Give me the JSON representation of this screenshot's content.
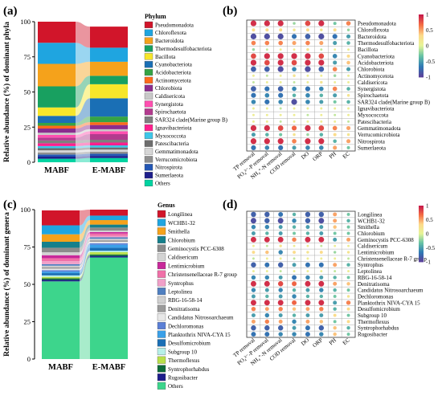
{
  "panels": {
    "a": {
      "label": "(a)"
    },
    "b": {
      "label": "(b)"
    },
    "c": {
      "label": "(c)"
    },
    "d": {
      "label": "(d)"
    }
  },
  "chart_data": [
    {
      "type": "bar",
      "panel": "a",
      "stacked": true,
      "ylabel": "Relative abundance (%) of dominant phyla",
      "ylim": [
        0,
        100
      ],
      "yticks": [
        0,
        25,
        50,
        75,
        100
      ],
      "categories": [
        "MABF",
        "E-MABF"
      ],
      "legend_title": "Phylum",
      "series_bottom_to_top": [
        {
          "name": "Others",
          "color": "#00d3a1",
          "values": [
            2.5,
            3
          ]
        },
        {
          "name": "Sumerlaeota",
          "color": "#1e1e8c",
          "values": [
            1.5,
            1.5
          ]
        },
        {
          "name": "Nitrospirota",
          "color": "#2357b5",
          "values": [
            1.5,
            1.5
          ]
        },
        {
          "name": "Verrucomicrobiota",
          "color": "#8f8f8f",
          "values": [
            1.5,
            1.5
          ]
        },
        {
          "name": "Gemmatimonadota",
          "color": "#d6d6d6",
          "values": [
            1.5,
            1.5
          ]
        },
        {
          "name": "Patescibacteria",
          "color": "#6d6d6d",
          "values": [
            1.5,
            1.5
          ]
        },
        {
          "name": "Myxococcota",
          "color": "#3dc6e8",
          "values": [
            1.5,
            1.5
          ]
        },
        {
          "name": "Ignavibacteriota",
          "color": "#ff1f8e",
          "values": [
            2,
            2
          ]
        },
        {
          "name": "SAR324 clade(Marine group B)",
          "color": "#7f7f7f",
          "values": [
            2,
            2
          ]
        },
        {
          "name": "Spirochaetota",
          "color": "#b23b8e",
          "values": [
            2,
            4
          ]
        },
        {
          "name": "Synergistota",
          "color": "#ff4fb0",
          "values": [
            2,
            2
          ]
        },
        {
          "name": "Caldisericota",
          "color": "#c8c8c8",
          "values": [
            1.5,
            1.5
          ]
        },
        {
          "name": "Chlorobiota",
          "color": "#8b2c8e",
          "values": [
            3,
            3
          ]
        },
        {
          "name": "Actinomycetota",
          "color": "#ff6a1a",
          "values": [
            2,
            2
          ]
        },
        {
          "name": "Acidobacteriota",
          "color": "#35a345",
          "values": [
            2,
            4
          ]
        },
        {
          "name": "Cyanobacteriota",
          "color": "#1a6fb5",
          "values": [
            5,
            13
          ]
        },
        {
          "name": "Bacillota",
          "color": "#f7e62a",
          "values": [
            6,
            10
          ]
        },
        {
          "name": "Thermodesulfobacteriota",
          "color": "#18a060",
          "values": [
            15,
            6
          ]
        },
        {
          "name": "Bacteroidota",
          "color": "#f5a21b",
          "values": [
            16,
            10
          ]
        },
        {
          "name": "Chloroflexota",
          "color": "#1fa5e0",
          "values": [
            15,
            10
          ]
        },
        {
          "name": "Pseudomonadota",
          "color": "#d1152a",
          "values": [
            15,
            15
          ]
        }
      ]
    },
    {
      "type": "heatmap",
      "panel": "b",
      "x": [
        "TP removal",
        "PO₄³⁻-P removal",
        "NH₄⁺-N removal",
        "COD removal",
        "DO",
        "ORP",
        "PH",
        "EC"
      ],
      "y": [
        "Pseudomonadota",
        "Chloroflexota",
        "Bacteroidota",
        "Thermodesulfobacteriota",
        "Bacillota",
        "Cyanobacteriota",
        "Acidobacteriota",
        "Chlorobiota",
        "Actinomycetota",
        "Caldisericota",
        "Synergistota",
        "Spirochaetota",
        "SAR324 clade(Marine group B)",
        "Ignavibacteriota",
        "Myxococcota",
        "Patescibacteria",
        "Gemmatimonadota",
        "Verrucomicrobiota",
        "Nitrospirota",
        "Sumerlaeota"
      ],
      "colorbar": {
        "min": -1,
        "max": 1,
        "ticks": [
          "1",
          "0.5",
          "0",
          "-0.5",
          "-1"
        ],
        "colors": [
          "#c4154b",
          "#f46d43",
          "#fdd98a",
          "#e6f598",
          "#66c2a5",
          "#2f79b5",
          "#5e3f99"
        ]
      },
      "values": [
        [
          0.9,
          0.9,
          0.9,
          -0.2,
          0.8,
          0.9,
          -0.3,
          0.6
        ],
        [
          0.3,
          0.3,
          0.3,
          0.2,
          0.3,
          0.2,
          0.3,
          -0.2
        ],
        [
          -0.9,
          -0.9,
          -0.9,
          -0.7,
          -0.8,
          -0.9,
          -0.7,
          -0.5
        ],
        [
          0.6,
          0.6,
          0.6,
          0.5,
          0.6,
          0.5,
          -0.5,
          -0.4
        ],
        [
          -0.2,
          -0.1,
          0.1,
          0.1,
          0.2,
          -0.1,
          0.1,
          0.1
        ],
        [
          0.8,
          0.9,
          0.9,
          0.9,
          0.9,
          0.8,
          -0.6,
          0.3
        ],
        [
          0.9,
          0.8,
          0.9,
          0.8,
          0.9,
          0.9,
          -0.5,
          0.4
        ],
        [
          -0.8,
          -0.8,
          -0.9,
          -0.6,
          -0.9,
          -0.8,
          0.6,
          -0.5
        ],
        [
          0.1,
          -0.1,
          0.1,
          0.2,
          0.1,
          0.1,
          -0.2,
          0.1
        ],
        [
          -0.1,
          0.1,
          0.1,
          -0.1,
          0.1,
          0.2,
          0.1,
          0.1
        ],
        [
          -0.8,
          -0.7,
          -0.8,
          -0.6,
          -0.7,
          -0.6,
          0.6,
          -0.4
        ],
        [
          -0.7,
          -0.6,
          -0.7,
          -0.4,
          -0.6,
          -0.4,
          -0.5,
          0.2
        ],
        [
          -0.6,
          -0.7,
          -0.6,
          -0.9,
          -0.6,
          -0.5,
          -0.3,
          -0.4
        ],
        [
          0.1,
          0.1,
          -0.1,
          0.1,
          0.1,
          0.1,
          0.1,
          0.1
        ],
        [
          0.1,
          0.1,
          0.1,
          0.1,
          -0.1,
          0.1,
          -0.1,
          0.1
        ],
        [
          0.1,
          0.1,
          -0.1,
          0.1,
          0.1,
          0.1,
          0.1,
          -0.1
        ],
        [
          0.9,
          0.9,
          0.8,
          0.7,
          0.9,
          0.8,
          0.6,
          0.5
        ],
        [
          -0.5,
          -0.4,
          -0.3,
          0.2,
          -0.2,
          -0.4,
          0.3,
          0.2
        ],
        [
          0.9,
          0.9,
          0.9,
          0.6,
          0.9,
          0.9,
          -0.4,
          0.5
        ],
        [
          -0.7,
          -0.6,
          -0.7,
          -0.5,
          -0.6,
          -0.6,
          0.5,
          -0.3
        ]
      ]
    },
    {
      "type": "bar",
      "panel": "c",
      "stacked": true,
      "ylabel": "Relative abundance (%) of dominant genera",
      "ylim": [
        0,
        100
      ],
      "yticks": [
        0,
        25,
        50,
        75,
        100
      ],
      "categories": [
        "MABF",
        "E-MABF"
      ],
      "legend_title": "Genus",
      "series_bottom_to_top": [
        {
          "name": "Others",
          "color": "#3dd58c",
          "values": [
            52,
            68
          ]
        },
        {
          "name": "Rugosibacter",
          "color": "#1e1e8c",
          "values": [
            1,
            1
          ]
        },
        {
          "name": "Syntrophorhabdus",
          "color": "#0d6b3a",
          "values": [
            1,
            1
          ]
        },
        {
          "name": "Thermoflexus",
          "color": "#b9e04a",
          "values": [
            1,
            1.5
          ]
        },
        {
          "name": "Subgroup 10",
          "color": "#b7f0e8",
          "values": [
            1,
            1
          ]
        },
        {
          "name": "Desulfomicrobium",
          "color": "#1a6fb5",
          "values": [
            1.5,
            2
          ]
        },
        {
          "name": "Planktothrix NIVA-CYA 15",
          "color": "#3aa0e8",
          "values": [
            1,
            2
          ]
        },
        {
          "name": "Dechloromonas",
          "color": "#5a7fd6",
          "values": [
            1,
            1
          ]
        },
        {
          "name": "Candidatus Nitrosoarchaeum",
          "color": "#e8e8e8",
          "values": [
            1,
            1
          ]
        },
        {
          "name": "Denitratisoma",
          "color": "#9a9a9a",
          "values": [
            1,
            1
          ]
        },
        {
          "name": "RBG-16-58-14",
          "color": "#d0d0d0",
          "values": [
            1,
            1
          ]
        },
        {
          "name": "Leptolinea",
          "color": "#4f7fc0",
          "values": [
            1,
            1
          ]
        },
        {
          "name": "Syntrophus",
          "color": "#f0a0c8",
          "values": [
            2,
            1
          ]
        },
        {
          "name": "Christensenellaceae R-7 group",
          "color": "#f070a8",
          "values": [
            2,
            1.5
          ]
        },
        {
          "name": "Lentimicrobium",
          "color": "#c8289a",
          "values": [
            2,
            1
          ]
        },
        {
          "name": "Caldisericum",
          "color": "#d3d3d3",
          "values": [
            2,
            1
          ]
        },
        {
          "name": "Geminocystis PCC-6308",
          "color": "#8c8c8c",
          "values": [
            3,
            2
          ]
        },
        {
          "name": "Chlorobium",
          "color": "#15808c",
          "values": [
            4,
            2
          ]
        },
        {
          "name": "Smithella",
          "color": "#f5a21b",
          "values": [
            5,
            3
          ]
        },
        {
          "name": "WCHB1-32",
          "color": "#1fa5e0",
          "values": [
            6,
            3
          ]
        },
        {
          "name": "Longilinea",
          "color": "#d1152a",
          "values": [
            10,
            4
          ]
        }
      ]
    },
    {
      "type": "heatmap",
      "panel": "d",
      "x": [
        "TP removal",
        "PO₄³⁻-P removal",
        "NH₄⁺-N removal",
        "COD removal",
        "DO",
        "ORP",
        "PH",
        "EC"
      ],
      "y": [
        "Longilinea",
        "WCHB1-32",
        "Smithella",
        "Chlorobium",
        "Geminocystis PCC-6308",
        "Caldisericum",
        "Lentimicrobium",
        "Christensenellaceae R-7 group",
        "Syntrophus",
        "Leptolinea",
        "RBG-16-58-14",
        "Denitratisoma",
        "Candidatus Nitrosoarchaeum",
        "Dechloromonas",
        "Planktothrix NIVA-CYA 15",
        "Desulfomicrobium",
        "Subgroup 10",
        "Thermoflexus",
        "Syntrophorhabdus",
        "Rugosibacter"
      ],
      "colorbar": {
        "min": -1,
        "max": 1,
        "ticks": [
          "1",
          "0.5",
          "0",
          "-0.5",
          "-1"
        ],
        "colors": [
          "#c4154b",
          "#f46d43",
          "#fdd98a",
          "#e6f598",
          "#66c2a5",
          "#2f79b5",
          "#5e3f99"
        ]
      },
      "values": [
        [
          -0.8,
          -0.8,
          -0.7,
          -0.4,
          -0.8,
          -0.8,
          0.5,
          -0.3
        ],
        [
          -0.9,
          -0.8,
          -0.9,
          -0.6,
          -0.8,
          -0.9,
          0.5,
          -0.4
        ],
        [
          -0.6,
          -0.6,
          -0.5,
          -0.4,
          -0.5,
          -0.5,
          0.4,
          -0.3
        ],
        [
          -0.5,
          -0.4,
          -0.5,
          -0.3,
          -0.4,
          -0.5,
          -0.3,
          -0.3
        ],
        [
          0.9,
          0.9,
          0.9,
          0.6,
          0.9,
          0.9,
          -0.5,
          0.5
        ],
        [
          0.1,
          -0.1,
          0.2,
          0.1,
          0.1,
          -0.1,
          0.1,
          0.1
        ],
        [
          0.3,
          0.4,
          -0.6,
          0.3,
          0.2,
          0.3,
          -0.2,
          0.2
        ],
        [
          -0.1,
          0.1,
          0.1,
          -0.1,
          0.1,
          0.1,
          0.1,
          -0.1
        ],
        [
          -0.8,
          -0.7,
          -0.8,
          -0.5,
          -0.7,
          -0.7,
          0.5,
          -0.4
        ],
        [
          0.1,
          0.1,
          -0.1,
          0.1,
          0.1,
          0.1,
          -0.1,
          0.1
        ],
        [
          -0.6,
          -0.6,
          -0.5,
          -0.7,
          -0.6,
          -0.5,
          -0.4,
          -0.3
        ],
        [
          0.9,
          0.9,
          0.8,
          0.7,
          0.9,
          0.9,
          0.5,
          0.4
        ],
        [
          -0.6,
          -0.5,
          -0.6,
          -0.4,
          -0.5,
          -0.6,
          -0.4,
          -0.3
        ],
        [
          -0.5,
          -0.4,
          -0.5,
          -0.6,
          -0.4,
          -0.4,
          -0.3,
          0.2
        ],
        [
          0.9,
          0.9,
          0.9,
          0.7,
          0.9,
          0.9,
          -0.5,
          0.6
        ],
        [
          0.6,
          0.5,
          0.6,
          0.4,
          0.5,
          0.6,
          -0.4,
          0.3
        ],
        [
          -0.5,
          -0.6,
          -0.5,
          -0.4,
          -0.5,
          -0.5,
          0.3,
          -0.3
        ],
        [
          0.5,
          0.6,
          0.5,
          -0.6,
          0.5,
          0.4,
          -0.3,
          0.3
        ],
        [
          -0.8,
          -0.8,
          -0.8,
          -0.5,
          -0.7,
          -0.8,
          0.4,
          -0.4
        ],
        [
          -0.7,
          -0.7,
          -0.6,
          -0.6,
          -0.7,
          -0.6,
          0.4,
          -0.3
        ]
      ]
    }
  ]
}
